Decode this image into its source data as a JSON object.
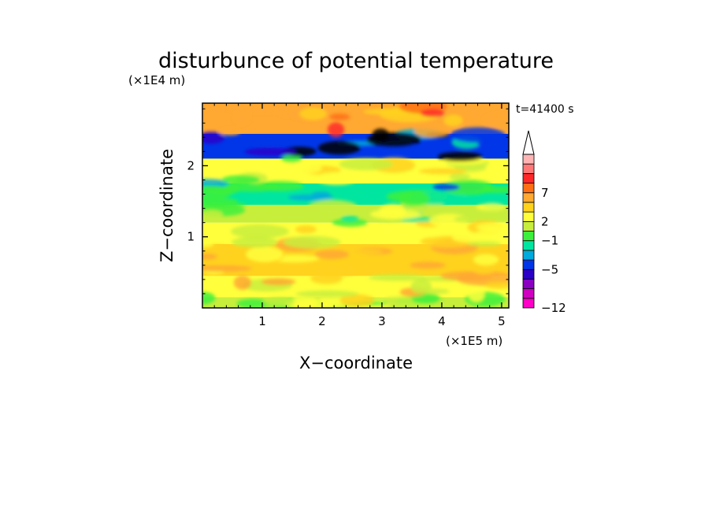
{
  "chart_data": {
    "type": "heatmap",
    "title": "disturbunce of potential temperature",
    "time_label": "t=41400 s",
    "xlabel": "X−coordinate",
    "ylabel": "Z−coordinate",
    "x_unit": "(×1E5 m)",
    "y_unit": "(×1E4 m)",
    "xlim": [
      0,
      5.12
    ],
    "ylim": [
      0,
      2.88
    ],
    "x_ticks": [
      {
        "value": 1,
        "label": "1"
      },
      {
        "value": 2,
        "label": "2"
      },
      {
        "value": 3,
        "label": "3"
      },
      {
        "value": 4,
        "label": "4"
      },
      {
        "value": 5,
        "label": "5"
      }
    ],
    "y_ticks": [
      {
        "value": 1,
        "label": "1"
      },
      {
        "value": 2,
        "label": "2"
      }
    ],
    "colorbar": {
      "colors": [
        "#ff00c8",
        "#d000c0",
        "#8a00c0",
        "#2a00c8",
        "#0036e8",
        "#00aadc",
        "#00e6a0",
        "#3cf03c",
        "#c8ee3c",
        "#ffff3c",
        "#ffd21e",
        "#ffa832",
        "#ff6e14",
        "#ff2828",
        "#ff7878",
        "#ffb4b4"
      ],
      "labels": [
        {
          "level": 0,
          "text": "−12"
        },
        {
          "level": 4,
          "text": "−5"
        },
        {
          "level": 7,
          "text": "−1"
        },
        {
          "level": 9,
          "text": "2"
        },
        {
          "level": 12,
          "text": "7"
        }
      ],
      "extend_top": true
    },
    "zones": [
      {
        "y_range": [
          0,
          0.15
        ],
        "value": 1.5
      },
      {
        "y_range": [
          0.15,
          0.45
        ],
        "value": 3.5
      },
      {
        "y_range": [
          0.45,
          0.9
        ],
        "value": 4.5
      },
      {
        "y_range": [
          0.9,
          1.2
        ],
        "value": 2.5
      },
      {
        "y_range": [
          1.2,
          1.45
        ],
        "value": 0.5
      },
      {
        "y_range": [
          1.45,
          1.75
        ],
        "value": -1.5
      },
      {
        "y_range": [
          1.75,
          2.1
        ],
        "value": 2.5
      },
      {
        "y_range": [
          2.1,
          2.45
        ],
        "value": -4.5
      },
      {
        "y_range": [
          2.45,
          2.88
        ],
        "value": 6.5
      }
    ]
  }
}
